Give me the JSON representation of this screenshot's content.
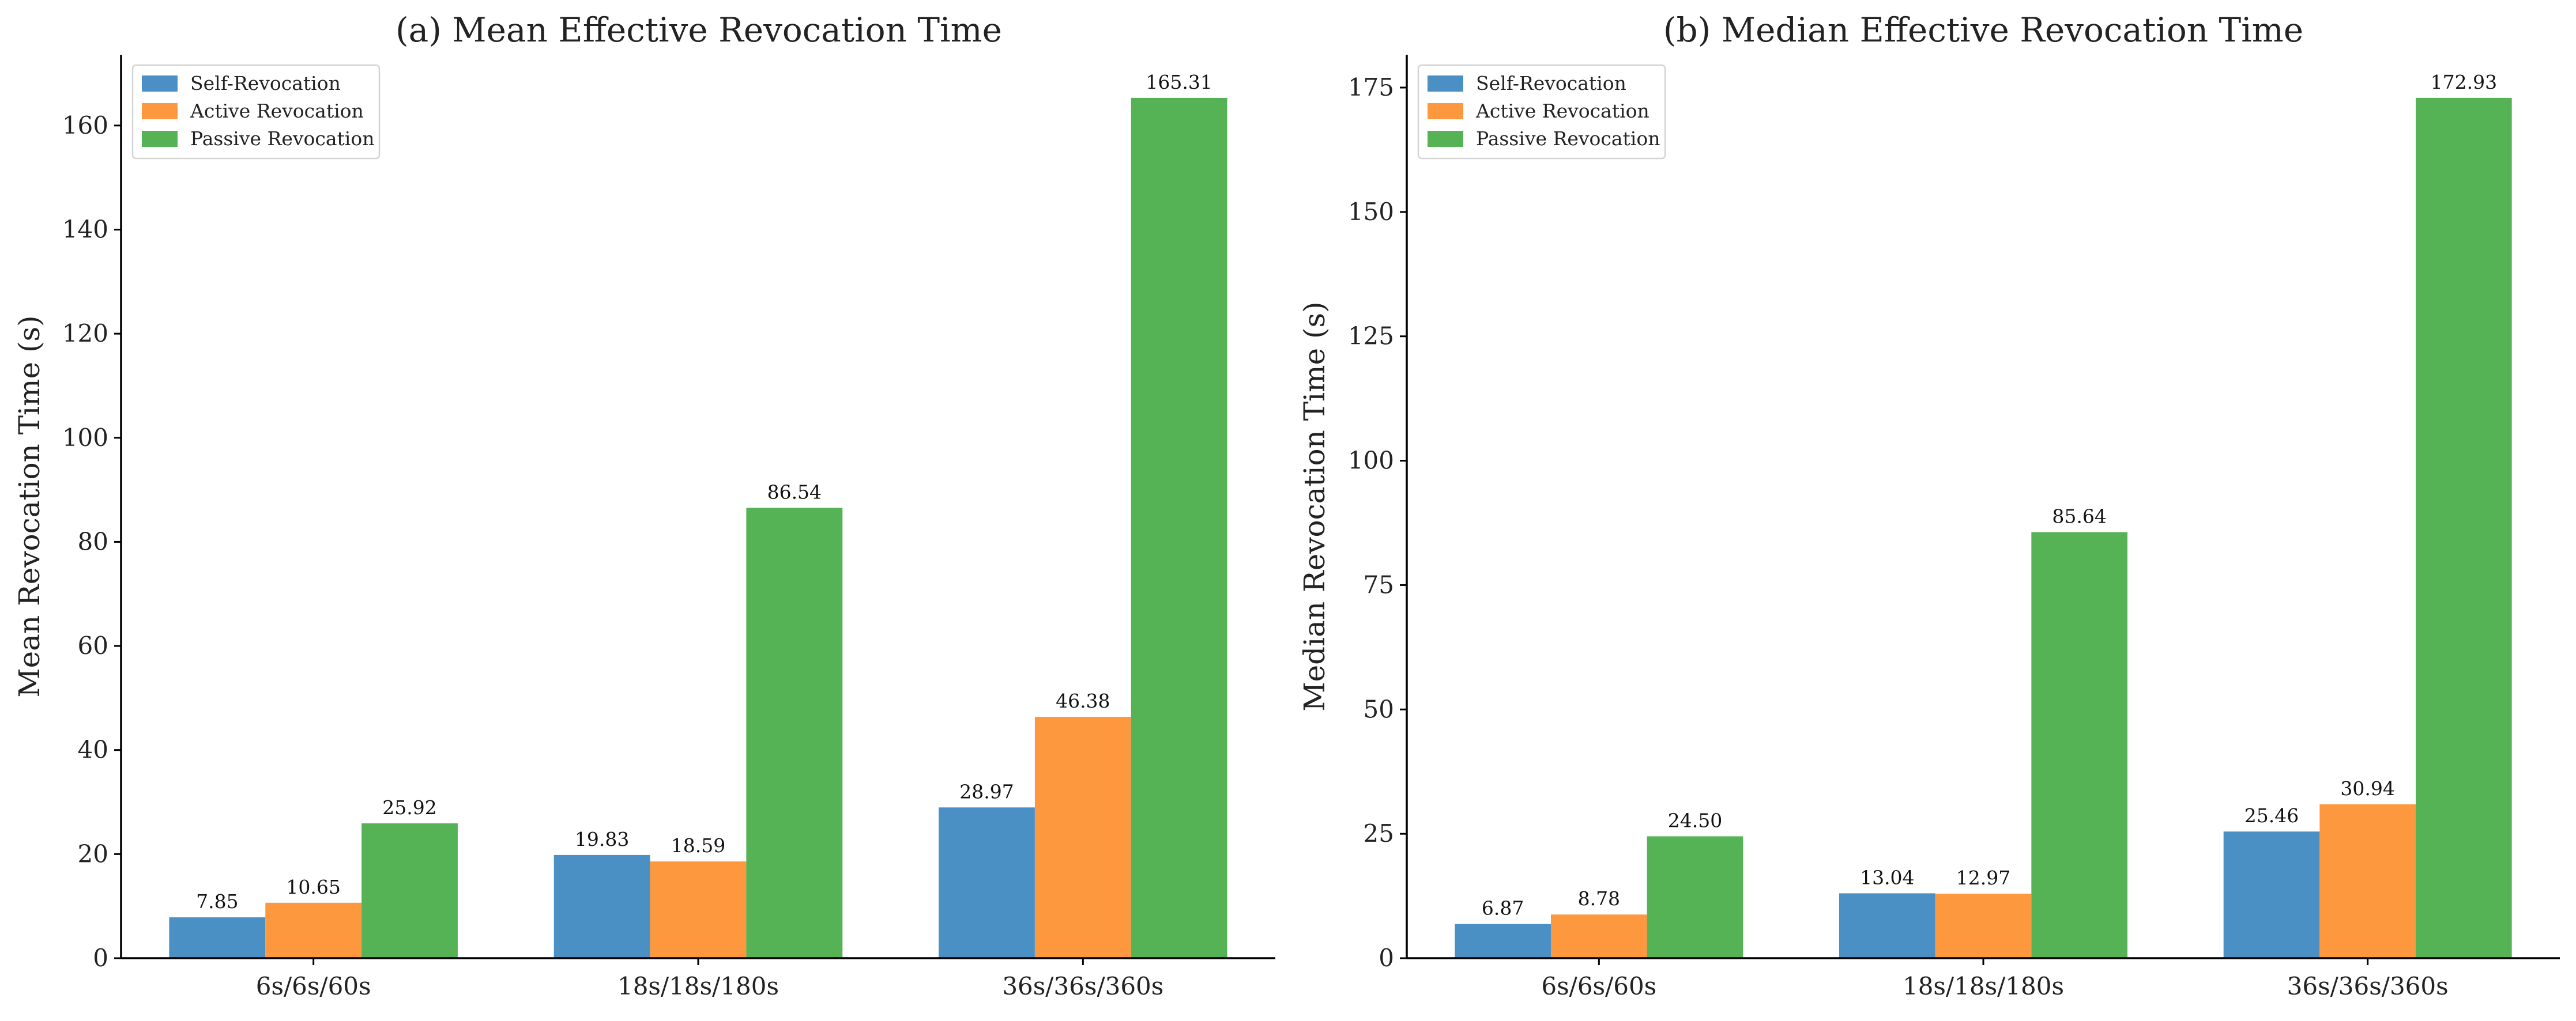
{
  "chart_data": [
    {
      "type": "bar",
      "title": "(a) Mean Effective Revocation Time",
      "xlabel": "",
      "ylabel": "Mean Revocation Time (s)",
      "categories": [
        "6s/6s/60s",
        "18s/18s/180s",
        "36s/36s/360s"
      ],
      "series": [
        {
          "name": "Self-Revocation",
          "values": [
            7.85,
            19.83,
            28.97
          ],
          "labels": [
            "7.85",
            "19.83",
            "28.97"
          ],
          "color": "#4a90c4"
        },
        {
          "name": "Active Revocation",
          "values": [
            10.65,
            18.59,
            46.38
          ],
          "labels": [
            "10.65",
            "18.59",
            "46.38"
          ],
          "color": "#fd983e"
        },
        {
          "name": "Passive Revocation",
          "values": [
            25.92,
            86.54,
            165.31
          ],
          "labels": [
            "25.92",
            "86.54",
            "165.31"
          ],
          "color": "#56b355"
        }
      ],
      "ylim": [
        0,
        173.6
      ],
      "yticks": [
        0,
        20,
        40,
        60,
        80,
        100,
        120,
        140,
        160
      ],
      "ytick_labels": [
        "0",
        "20",
        "40",
        "60",
        "80",
        "100",
        "120",
        "140",
        "160"
      ],
      "legend": "top-left",
      "grid": false
    },
    {
      "type": "bar",
      "title": "(b) Median Effective Revocation Time",
      "xlabel": "",
      "ylabel": "Median Revocation Time (s)",
      "categories": [
        "6s/6s/60s",
        "18s/18s/180s",
        "36s/36s/360s"
      ],
      "series": [
        {
          "name": "Self-Revocation",
          "values": [
            6.87,
            13.04,
            25.46
          ],
          "labels": [
            "6.87",
            "13.04",
            "25.46"
          ],
          "color": "#4a90c4"
        },
        {
          "name": "Active Revocation",
          "values": [
            8.78,
            12.97,
            30.94
          ],
          "labels": [
            "8.78",
            "12.97",
            "30.94"
          ],
          "color": "#fd983e"
        },
        {
          "name": "Passive Revocation",
          "values": [
            24.5,
            85.64,
            172.93
          ],
          "labels": [
            "24.50",
            "85.64",
            "172.93"
          ],
          "color": "#56b355"
        }
      ],
      "ylim": [
        0,
        181.6
      ],
      "yticks": [
        0,
        25,
        50,
        75,
        100,
        125,
        150,
        175
      ],
      "ytick_labels": [
        "0",
        "25",
        "50",
        "75",
        "100",
        "125",
        "150",
        "175"
      ],
      "legend": "top-left",
      "grid": false
    }
  ]
}
